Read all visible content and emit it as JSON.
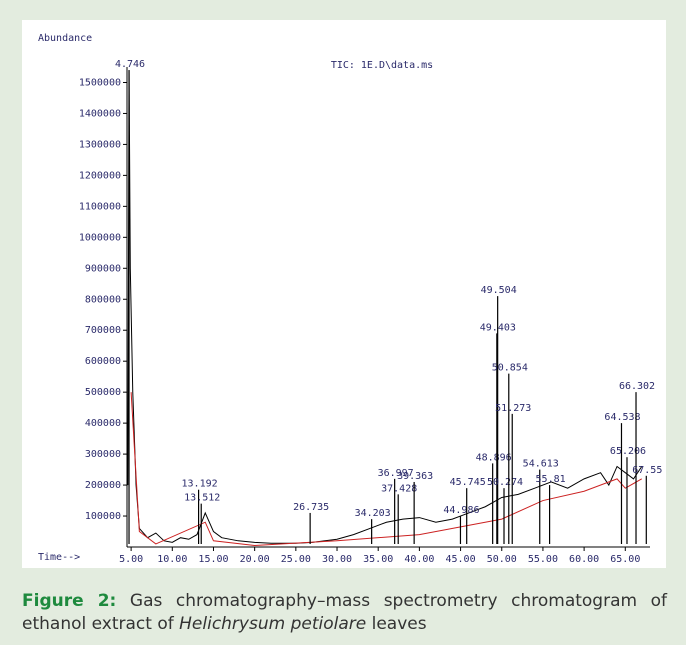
{
  "chart_data": {
    "type": "chromatogram",
    "title": "TIC: 1E.D\\data.ms",
    "y_label": "Abundance",
    "x_label": "Time-->",
    "xlim": [
      4.5,
      68
    ],
    "ylim": [
      0,
      1550000
    ],
    "xticks": [
      {
        "value": 5,
        "label": "5.00"
      },
      {
        "value": 10,
        "label": "10.00"
      },
      {
        "value": 15,
        "label": "15.00"
      },
      {
        "value": 20,
        "label": "20.00"
      },
      {
        "value": 25,
        "label": "25.00"
      },
      {
        "value": 30,
        "label": "30.00"
      },
      {
        "value": 35,
        "label": "35.00"
      },
      {
        "value": 40,
        "label": "40.00"
      },
      {
        "value": 45,
        "label": "45.00"
      },
      {
        "value": 50,
        "label": "50.00"
      },
      {
        "value": 55,
        "label": "55.00"
      },
      {
        "value": 60,
        "label": "60.00"
      },
      {
        "value": 65,
        "label": "65.00"
      }
    ],
    "yticks": [
      100000,
      200000,
      300000,
      400000,
      500000,
      600000,
      700000,
      800000,
      900000,
      1000000,
      1100000,
      1200000,
      1300000,
      1400000,
      1500000
    ],
    "series": [
      {
        "color": "#000000",
        "x": [
          4.6,
          4.75,
          4.9,
          5.2,
          5.6,
          6,
          7,
          8,
          9,
          10,
          11,
          12,
          13,
          14,
          15,
          16,
          18,
          20,
          22,
          25,
          27,
          30,
          32,
          34,
          36,
          38,
          40,
          42,
          44,
          46,
          48,
          50,
          52,
          54,
          56,
          58,
          60,
          62,
          63,
          64,
          65,
          66,
          67
        ],
        "values": [
          200000,
          1540000,
          900000,
          500000,
          200000,
          60000,
          30000,
          45000,
          20000,
          15000,
          30000,
          25000,
          40000,
          110000,
          50000,
          30000,
          20000,
          15000,
          12000,
          12000,
          15000,
          25000,
          40000,
          60000,
          80000,
          90000,
          95000,
          80000,
          90000,
          110000,
          130000,
          160000,
          170000,
          190000,
          210000,
          190000,
          220000,
          240000,
          200000,
          260000,
          240000,
          220000,
          260000
        ]
      },
      {
        "color": "#cc2222",
        "x": [
          5,
          6,
          8,
          14,
          15,
          20,
          30,
          40,
          50,
          55,
          60,
          64,
          65,
          67
        ],
        "values": [
          500000,
          50000,
          10000,
          80000,
          20000,
          5000,
          20000,
          40000,
          90000,
          150000,
          180000,
          220000,
          190000,
          220000
        ]
      }
    ],
    "peaks": {
      "color": "#000000",
      "x": [
        4.746,
        13.192,
        13.512,
        26.735,
        34.203,
        36.997,
        37.428,
        39.363,
        44.986,
        45.745,
        48.896,
        49.403,
        49.504,
        50.274,
        50.854,
        51.273,
        54.613,
        55.81,
        64.538,
        65.206,
        66.302,
        67.55
      ],
      "values": [
        1540000,
        185000,
        140000,
        110000,
        90000,
        220000,
        170000,
        210000,
        100000,
        190000,
        270000,
        690000,
        810000,
        190000,
        560000,
        430000,
        250000,
        200000,
        400000,
        290000,
        500000,
        230000
      ]
    },
    "label_color": "#2a2a6a"
  },
  "caption": {
    "label": "Figure 2:",
    "text_before": "Gas chromatography–mass spectrometry chromatogram of ethanol extract of ",
    "species": "Helichrysum petiolare",
    "text_after": " leaves"
  }
}
